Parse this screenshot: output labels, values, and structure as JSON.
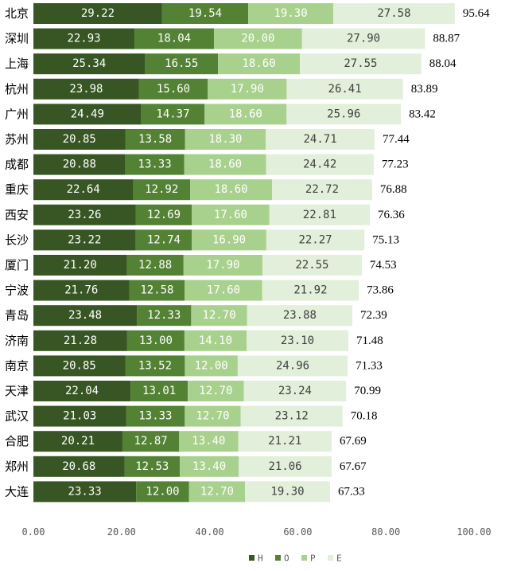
{
  "chart_data": {
    "type": "bar",
    "orientation": "horizontal",
    "stacked": true,
    "categories": [
      "北京",
      "深圳",
      "上海",
      "杭州",
      "广州",
      "苏州",
      "成都",
      "重庆",
      "西安",
      "长沙",
      "厦门",
      "宁波",
      "青岛",
      "济南",
      "南京",
      "天津",
      "武汉",
      "合肥",
      "郑州",
      "大连"
    ],
    "series": [
      {
        "name": "H",
        "color": "#375623",
        "label_color": "#ffffff",
        "values": [
          29.22,
          22.93,
          25.34,
          23.98,
          24.49,
          20.85,
          20.88,
          22.64,
          23.26,
          23.22,
          21.2,
          21.76,
          23.48,
          21.28,
          20.85,
          22.04,
          21.03,
          20.21,
          20.68,
          23.33
        ]
      },
      {
        "name": "O",
        "color": "#548235",
        "label_color": "#ffffff",
        "values": [
          19.54,
          18.04,
          16.55,
          15.6,
          14.37,
          13.58,
          13.33,
          12.92,
          12.69,
          12.74,
          12.88,
          12.58,
          12.33,
          13.0,
          13.52,
          13.01,
          13.33,
          12.87,
          12.53,
          12.0
        ]
      },
      {
        "name": "P",
        "color": "#a9d18e",
        "label_color": "#ffffff",
        "values": [
          19.3,
          20.0,
          18.6,
          17.9,
          18.6,
          18.3,
          18.6,
          18.6,
          17.6,
          16.9,
          17.9,
          17.6,
          12.7,
          14.1,
          12.0,
          12.7,
          12.7,
          13.4,
          13.4,
          12.7
        ]
      },
      {
        "name": "E",
        "color": "#e2efda",
        "label_color": "#404040",
        "values": [
          27.58,
          27.9,
          27.55,
          26.41,
          25.96,
          24.71,
          24.42,
          22.72,
          22.81,
          22.27,
          22.55,
          21.92,
          23.88,
          23.1,
          24.96,
          23.24,
          23.12,
          21.21,
          21.06,
          19.3
        ]
      }
    ],
    "totals": [
      "95.64",
      "88.87",
      "88.04",
      "83.89",
      "83.42",
      "77.44",
      "77.23",
      "76.88",
      "76.36",
      "75.13",
      "74.53",
      "73.86",
      "72.39",
      "71.48",
      "71.33",
      "70.99",
      "70.18",
      "67.69",
      "67.67",
      "67.33"
    ],
    "xlim": [
      0,
      100
    ],
    "xticks": [
      0,
      20,
      40,
      60,
      80,
      100
    ],
    "xtick_labels": [
      "0.00",
      "20.00",
      "40.00",
      "60.00",
      "80.00",
      "100.00"
    ],
    "title": "",
    "xlabel": "",
    "ylabel": "",
    "grid": false,
    "legend_position": "bottom-right"
  }
}
